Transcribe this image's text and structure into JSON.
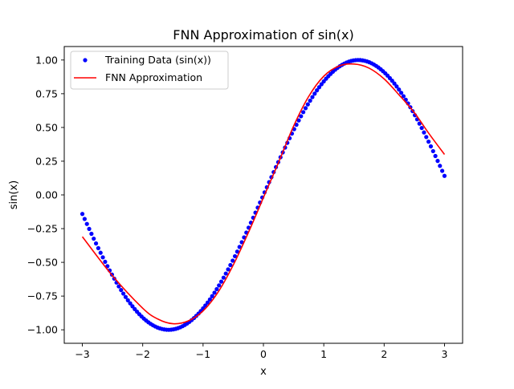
{
  "chart_data": {
    "type": "line",
    "title": "FNN Approximation of sin(x)",
    "xlabel": "x",
    "ylabel": "sin(x)",
    "xlim": [
      -3.3,
      3.3
    ],
    "ylim": [
      -1.1,
      1.1
    ],
    "x_ticks": [
      -3,
      -2,
      -1,
      0,
      1,
      2,
      3
    ],
    "x_tick_labels": [
      "−3",
      "−2",
      "−1",
      "0",
      "1",
      "2",
      "3"
    ],
    "y_ticks": [
      -1.0,
      -0.75,
      -0.5,
      -0.25,
      0.0,
      0.25,
      0.5,
      0.75,
      1.0
    ],
    "y_tick_labels": [
      "−1.00",
      "−0.75",
      "−0.50",
      "−0.25",
      "0.00",
      "0.25",
      "0.50",
      "0.75",
      "1.00"
    ],
    "grid": false,
    "legend_position": "top-left",
    "series": [
      {
        "name": "Training Data (sin(x))",
        "style": "scatter",
        "color": "#0000ff",
        "x_range": [
          -3,
          3
        ],
        "function": "sin"
      },
      {
        "name": "FNN Approximation",
        "style": "line",
        "color": "#ff0000",
        "x": [
          -3.0,
          -2.5,
          -2.0,
          -1.75,
          -1.5,
          -1.25,
          -1.0,
          -0.75,
          -0.5,
          -0.25,
          0.0,
          0.25,
          0.5,
          0.75,
          1.0,
          1.25,
          1.5,
          1.75,
          2.0,
          2.25,
          2.5,
          2.75,
          3.0
        ],
        "y": [
          -0.31,
          -0.6,
          -0.84,
          -0.92,
          -0.955,
          -0.935,
          -0.86,
          -0.72,
          -0.52,
          -0.28,
          -0.02,
          0.24,
          0.51,
          0.73,
          0.88,
          0.955,
          0.97,
          0.94,
          0.86,
          0.74,
          0.61,
          0.45,
          0.3
        ]
      }
    ]
  }
}
